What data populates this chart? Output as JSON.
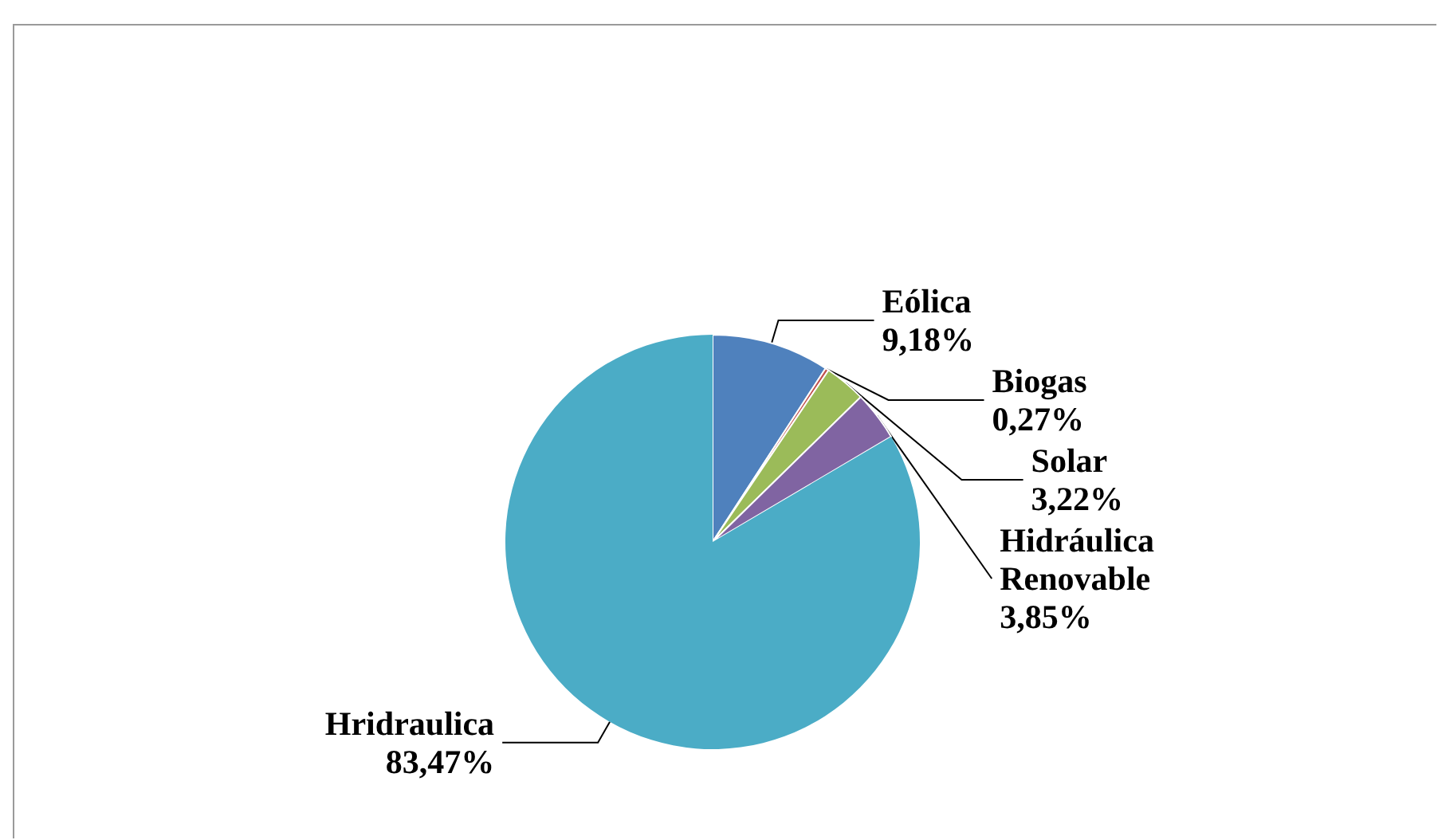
{
  "chart_data": {
    "type": "pie",
    "categories": [
      "Eólica",
      "Biogas",
      "Solar",
      "Hidráulica Renovable",
      "Hridraulica"
    ],
    "values": [
      9.18,
      0.27,
      3.22,
      3.85,
      83.47
    ],
    "colors": [
      "#4f81bd",
      "#c0504d",
      "#9bbb59",
      "#8064a2",
      "#4bacc6"
    ],
    "value_labels": [
      "9,18%",
      "0,27%",
      "3,22%",
      "3,85%",
      "83,47%"
    ]
  }
}
